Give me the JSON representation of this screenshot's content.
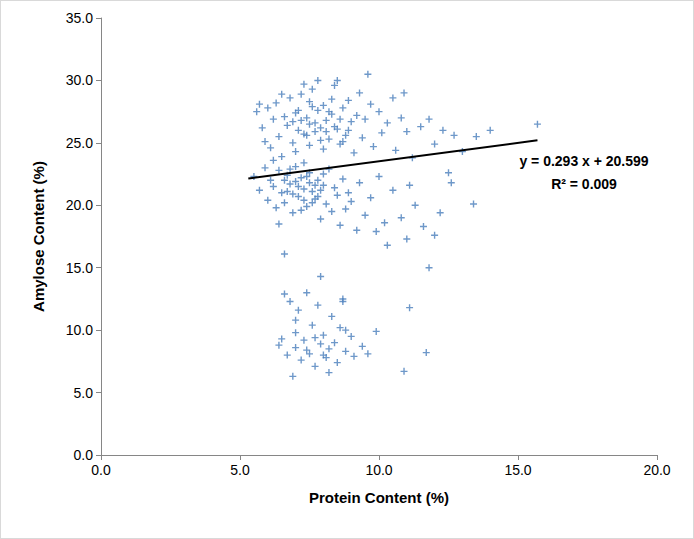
{
  "chart_data": {
    "type": "scatter",
    "x_label": "Protein Content (%)",
    "y_label": "Amylose Content (%)",
    "color": "#4a7ebb",
    "marker": "plus",
    "grid": false,
    "xlim": [
      0,
      20
    ],
    "xticks": [
      {
        "value": 0,
        "label": "0.0"
      },
      {
        "value": 5,
        "label": "5.0"
      },
      {
        "value": 10,
        "label": "10.0"
      },
      {
        "value": 15,
        "label": "15.0"
      },
      {
        "value": 20,
        "label": "20.0"
      }
    ],
    "ylim": [
      0,
      35
    ],
    "yticks": [
      {
        "value": 0,
        "label": "0.0"
      },
      {
        "value": 5,
        "label": "5.0"
      },
      {
        "value": 10,
        "label": "10.0"
      },
      {
        "value": 15,
        "label": "15.0"
      },
      {
        "value": 20,
        "label": "20.0"
      },
      {
        "value": 25,
        "label": "25.0"
      },
      {
        "value": 30,
        "label": "30.0"
      },
      {
        "value": 35,
        "label": "35.0"
      }
    ],
    "annotations": [
      "y = 0.293 x + 20.599",
      "R² = 0.009"
    ],
    "trendline": {
      "x": [
        5.3,
        15.7
      ],
      "y": [
        22.15,
        25.2
      ],
      "color": "#000000"
    },
    "points": [
      [
        5.6,
        27.5
      ],
      [
        5.8,
        26.2
      ],
      [
        5.9,
        25.1
      ],
      [
        6.0,
        27.8
      ],
      [
        6.1,
        24.6
      ],
      [
        6.2,
        26.9
      ],
      [
        6.3,
        28.2
      ],
      [
        6.4,
        25.5
      ],
      [
        6.5,
        23.9
      ],
      [
        6.6,
        27.1
      ],
      [
        6.7,
        26.4
      ],
      [
        6.8,
        28.6
      ],
      [
        6.9,
        25.0
      ],
      [
        7.0,
        27.4
      ],
      [
        7.0,
        24.3
      ],
      [
        7.1,
        26.0
      ],
      [
        7.2,
        28.9
      ],
      [
        7.3,
        25.7
      ],
      [
        7.4,
        27.0
      ],
      [
        7.5,
        26.5
      ],
      [
        7.5,
        24.8
      ],
      [
        7.6,
        29.3
      ],
      [
        7.7,
        25.9
      ],
      [
        7.8,
        27.6
      ],
      [
        7.9,
        26.2
      ],
      [
        8.0,
        28.0
      ],
      [
        8.0,
        24.5
      ],
      [
        8.1,
        26.8
      ],
      [
        8.2,
        25.3
      ],
      [
        8.3,
        27.3
      ],
      [
        8.4,
        29.6
      ],
      [
        8.5,
        26.1
      ],
      [
        8.6,
        24.9
      ],
      [
        8.7,
        27.8
      ],
      [
        8.8,
        25.6
      ],
      [
        8.9,
        28.4
      ],
      [
        9.0,
        26.7
      ],
      [
        9.1,
        24.2
      ],
      [
        9.2,
        27.2
      ],
      [
        9.3,
        29.0
      ],
      [
        9.4,
        25.4
      ],
      [
        9.5,
        26.9
      ],
      [
        9.7,
        28.1
      ],
      [
        9.8,
        24.7
      ],
      [
        10.0,
        27.5
      ],
      [
        10.1,
        25.8
      ],
      [
        10.3,
        26.6
      ],
      [
        10.5,
        28.6
      ],
      [
        10.6,
        24.4
      ],
      [
        10.8,
        27.0
      ],
      [
        11.0,
        25.9
      ],
      [
        11.2,
        23.8
      ],
      [
        11.5,
        26.3
      ],
      [
        12.0,
        24.9
      ],
      [
        12.3,
        26.0
      ],
      [
        12.7,
        25.6
      ],
      [
        13.0,
        24.3
      ],
      [
        12.5,
        22.6
      ],
      [
        14.0,
        26.0
      ],
      [
        15.7,
        26.5
      ],
      [
        9.6,
        30.5
      ],
      [
        8.5,
        30.0
      ],
      [
        7.8,
        30.0
      ],
      [
        6.5,
        28.9
      ],
      [
        7.3,
        29.7
      ],
      [
        5.7,
        28.1
      ],
      [
        6.2,
        23.6
      ],
      [
        10.9,
        29.0
      ],
      [
        11.8,
        26.9
      ],
      [
        13.5,
        25.5
      ],
      [
        7.2,
        26.8
      ],
      [
        7.6,
        27.9
      ],
      [
        7.9,
        25.2
      ],
      [
        8.2,
        27.5
      ],
      [
        8.4,
        26.3
      ],
      [
        7.4,
        25.6
      ],
      [
        7.7,
        26.6
      ],
      [
        8.1,
        25.9
      ],
      [
        8.6,
        26.9
      ],
      [
        7.1,
        27.6
      ],
      [
        8.9,
        26.0
      ],
      [
        8.3,
        28.5
      ],
      [
        7.5,
        28.3
      ],
      [
        6.9,
        26.7
      ],
      [
        8.7,
        25.1
      ],
      [
        5.5,
        22.3
      ],
      [
        5.7,
        21.2
      ],
      [
        5.9,
        23.0
      ],
      [
        6.0,
        20.4
      ],
      [
        6.1,
        22.0
      ],
      [
        6.2,
        21.5
      ],
      [
        6.3,
        19.8
      ],
      [
        6.4,
        22.8
      ],
      [
        6.5,
        21.0
      ],
      [
        6.6,
        20.2
      ],
      [
        6.7,
        22.4
      ],
      [
        6.8,
        21.7
      ],
      [
        6.9,
        19.4
      ],
      [
        7.0,
        21.9
      ],
      [
        7.0,
        23.1
      ],
      [
        7.1,
        20.7
      ],
      [
        7.2,
        22.2
      ],
      [
        7.3,
        21.3
      ],
      [
        7.4,
        19.9
      ],
      [
        7.5,
        22.6
      ],
      [
        7.6,
        21.1
      ],
      [
        7.7,
        20.5
      ],
      [
        7.8,
        22.0
      ],
      [
        7.9,
        18.9
      ],
      [
        8.0,
        21.6
      ],
      [
        8.1,
        20.1
      ],
      [
        8.2,
        22.9
      ],
      [
        8.3,
        19.5
      ],
      [
        8.4,
        21.4
      ],
      [
        8.5,
        20.8
      ],
      [
        8.6,
        18.4
      ],
      [
        8.7,
        22.1
      ],
      [
        8.8,
        19.7
      ],
      [
        8.9,
        21.0
      ],
      [
        9.0,
        20.3
      ],
      [
        9.2,
        18.0
      ],
      [
        9.3,
        21.8
      ],
      [
        9.5,
        19.2
      ],
      [
        9.7,
        20.6
      ],
      [
        9.9,
        17.9
      ],
      [
        10.0,
        22.3
      ],
      [
        10.2,
        18.6
      ],
      [
        10.5,
        21.2
      ],
      [
        10.8,
        19.0
      ],
      [
        11.0,
        17.3
      ],
      [
        11.3,
        20.0
      ],
      [
        11.6,
        18.3
      ],
      [
        11.8,
        15.0
      ],
      [
        12.0,
        17.6
      ],
      [
        12.2,
        19.4
      ],
      [
        12.6,
        21.8
      ],
      [
        13.4,
        20.1
      ],
      [
        6.6,
        16.1
      ],
      [
        7.3,
        23.4
      ],
      [
        6.4,
        18.5
      ],
      [
        10.3,
        16.8
      ],
      [
        11.1,
        21.6
      ],
      [
        6.8,
        22.9
      ],
      [
        7.1,
        21.5
      ],
      [
        7.3,
        20.4
      ],
      [
        7.5,
        21.8
      ],
      [
        7.7,
        21.6
      ],
      [
        6.9,
        20.9
      ],
      [
        7.4,
        22.3
      ],
      [
        7.6,
        20.2
      ],
      [
        7.2,
        19.6
      ],
      [
        6.7,
        21.1
      ],
      [
        7.9,
        21.2
      ],
      [
        8.0,
        22.5
      ],
      [
        6.6,
        22.0
      ],
      [
        7.8,
        20.7
      ],
      [
        7.9,
        14.3
      ],
      [
        11.1,
        11.8
      ],
      [
        6.6,
        12.9
      ],
      [
        6.8,
        12.3
      ],
      [
        7.0,
        9.8
      ],
      [
        7.0,
        8.6
      ],
      [
        7.1,
        11.6
      ],
      [
        7.2,
        7.6
      ],
      [
        7.3,
        9.2
      ],
      [
        7.4,
        13.0
      ],
      [
        7.5,
        8.1
      ],
      [
        7.6,
        10.4
      ],
      [
        7.7,
        7.1
      ],
      [
        7.8,
        12.0
      ],
      [
        7.9,
        8.9
      ],
      [
        8.0,
        9.6
      ],
      [
        8.1,
        7.8
      ],
      [
        8.2,
        8.5
      ],
      [
        8.3,
        11.1
      ],
      [
        8.4,
        9.0
      ],
      [
        8.5,
        7.4
      ],
      [
        8.6,
        10.2
      ],
      [
        8.7,
        12.5
      ],
      [
        8.8,
        8.3
      ],
      [
        9.0,
        9.5
      ],
      [
        9.1,
        7.9
      ],
      [
        9.4,
        8.7
      ],
      [
        9.6,
        8.1
      ],
      [
        9.9,
        9.9
      ],
      [
        6.5,
        9.3
      ],
      [
        6.7,
        8.0
      ],
      [
        6.9,
        6.3
      ],
      [
        7.0,
        10.8
      ],
      [
        6.4,
        8.8
      ],
      [
        8.2,
        6.6
      ],
      [
        10.9,
        6.7
      ],
      [
        11.7,
        8.2
      ],
      [
        7.4,
        8.4
      ],
      [
        7.7,
        9.4
      ],
      [
        8.0,
        8.0
      ],
      [
        8.8,
        10.0
      ],
      [
        8.7,
        12.3
      ]
    ]
  }
}
